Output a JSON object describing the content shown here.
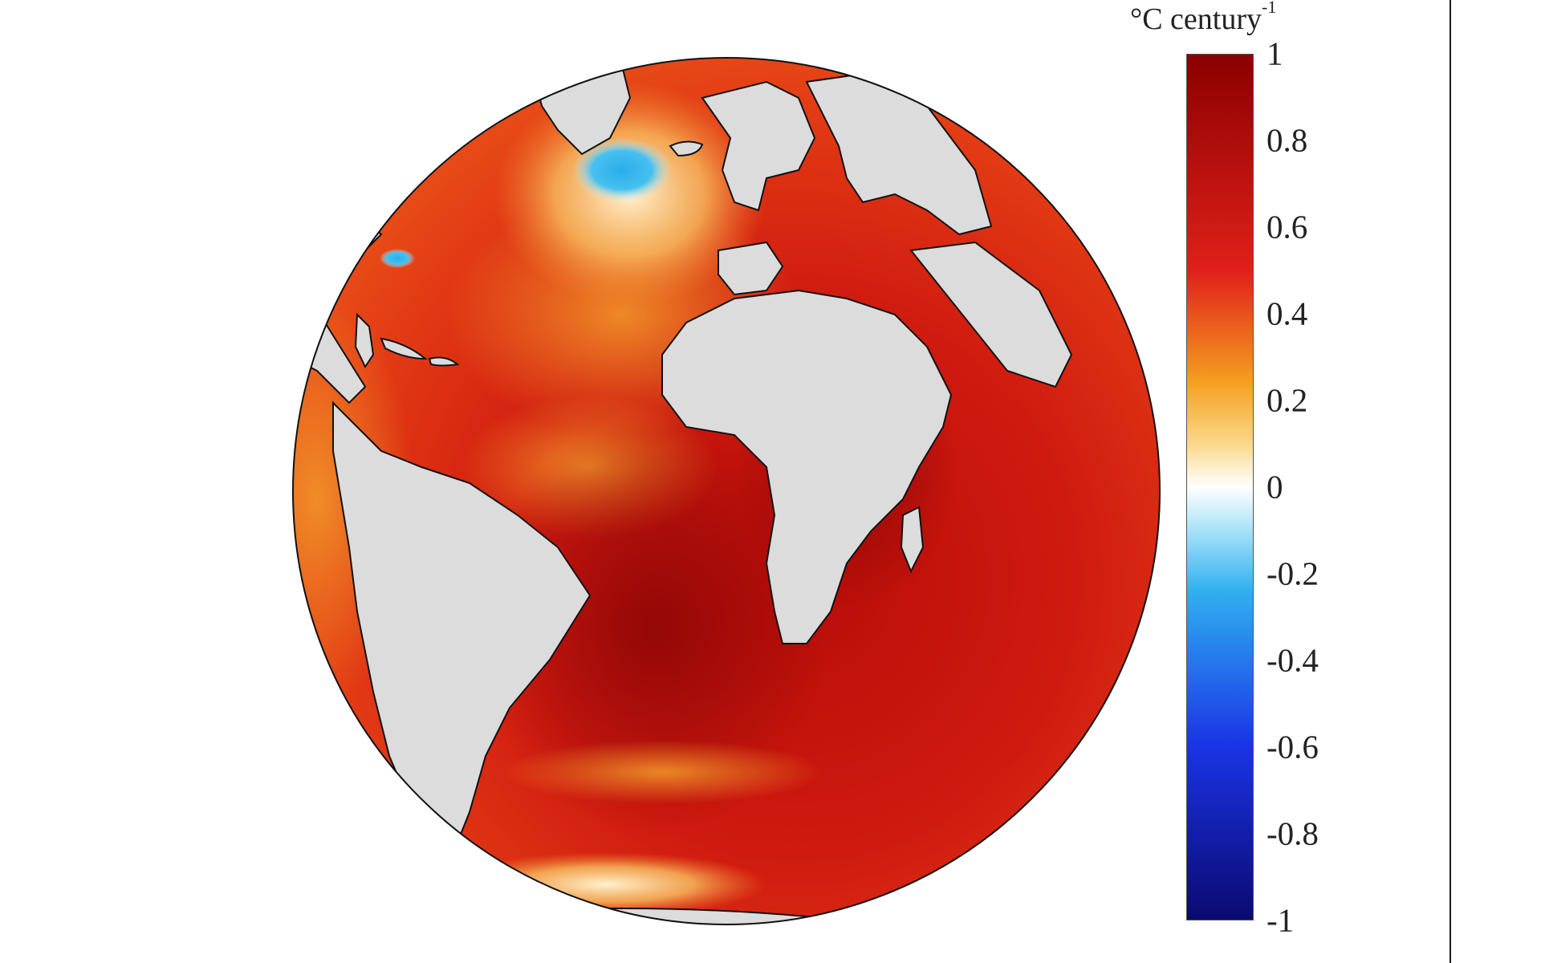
{
  "map": {
    "projection": "orthographic",
    "region": "Atlantic Ocean",
    "land_color": "#dcdcdc",
    "coastline_color": "#000000",
    "ocean_warming_color": "#c8120c",
    "cooling_spot_color": "#35b7ee"
  },
  "colorbar": {
    "unit_prefix": "°C century",
    "unit_exponent": "-1",
    "ticks": [
      "1",
      "0.8",
      "0.6",
      "0.4",
      "0.2",
      "0",
      "-0.2",
      "-0.4",
      "-0.6",
      "-0.8",
      "-1"
    ],
    "range": [
      -1,
      1
    ],
    "colors": {
      "max": "#8b0000",
      "high": "#e0201a",
      "mid_high": "#f5a020",
      "zero": "#ffffff",
      "mid_low": "#30b0f0",
      "low": "#1a33e6",
      "min": "#0a0a70"
    }
  }
}
